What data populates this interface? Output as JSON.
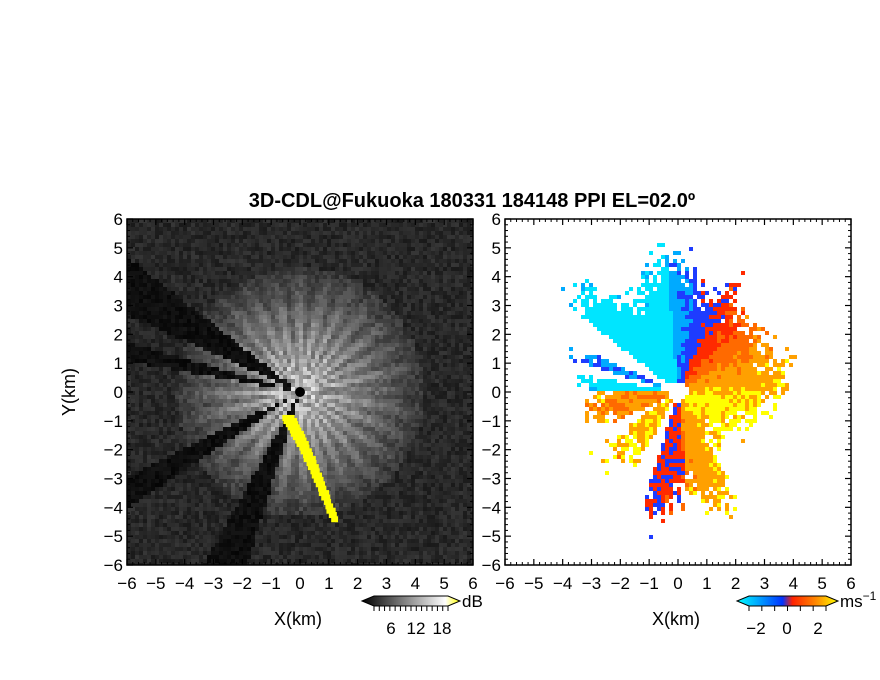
{
  "title": "3D-CDL@Fukuoka 180331 184148 PPI EL=02.0º",
  "chart_data": [
    {
      "type": "heatmap",
      "panel": "left",
      "variable": "intensity",
      "xlabel": "X(km)",
      "ylabel": "Y(km)",
      "xlim": [
        -6,
        6
      ],
      "ylim": [
        -6,
        6
      ],
      "xticks": [
        "−6",
        "−5",
        "−4",
        "−3",
        "−2",
        "−1",
        "0",
        "1",
        "2",
        "3",
        "4",
        "5",
        "6"
      ],
      "yticks": [
        "6",
        "5",
        "4",
        "3",
        "2",
        "1",
        "0",
        "−1",
        "−2",
        "−3",
        "−4",
        "−5",
        "−6"
      ],
      "colorbar": {
        "unit": "dB",
        "ticks": [
          "6",
          "12",
          "18"
        ],
        "range": [
          0,
          21
        ],
        "colors": [
          "#000000",
          "#ffffff",
          "#ffff00"
        ]
      },
      "blocked_sectors_deg": [
        [
          142,
          156
        ],
        [
          164,
          170
        ],
        [
          206,
          214
        ],
        [
          241,
          253
        ]
      ],
      "highlight_streak": {
        "color": "#ffff00",
        "from": [
          -0.4,
          -0.9
        ],
        "to": [
          1.2,
          -4.3
        ]
      }
    },
    {
      "type": "heatmap",
      "panel": "right",
      "variable": "doppler velocity",
      "xlabel": "X(km)",
      "ylabel": "",
      "xlim": [
        -6,
        6
      ],
      "ylim": [
        -6,
        6
      ],
      "xticks": [
        "−6",
        "−5",
        "−4",
        "−3",
        "−2",
        "−1",
        "0",
        "1",
        "2",
        "3",
        "4",
        "5",
        "6"
      ],
      "yticks": [
        "6",
        "5",
        "4",
        "3",
        "2",
        "1",
        "0",
        "−1",
        "−2",
        "−3",
        "−4",
        "−5",
        "−6"
      ],
      "colorbar": {
        "unit": "ms",
        "unit_exponent": "−1",
        "ticks": [
          "−2",
          "0",
          "2"
        ],
        "range": [
          -3,
          3
        ],
        "colors": [
          "#00ffff",
          "#0033ff",
          "#ff2200",
          "#ff8800",
          "#ffff00"
        ]
      }
    }
  ]
}
